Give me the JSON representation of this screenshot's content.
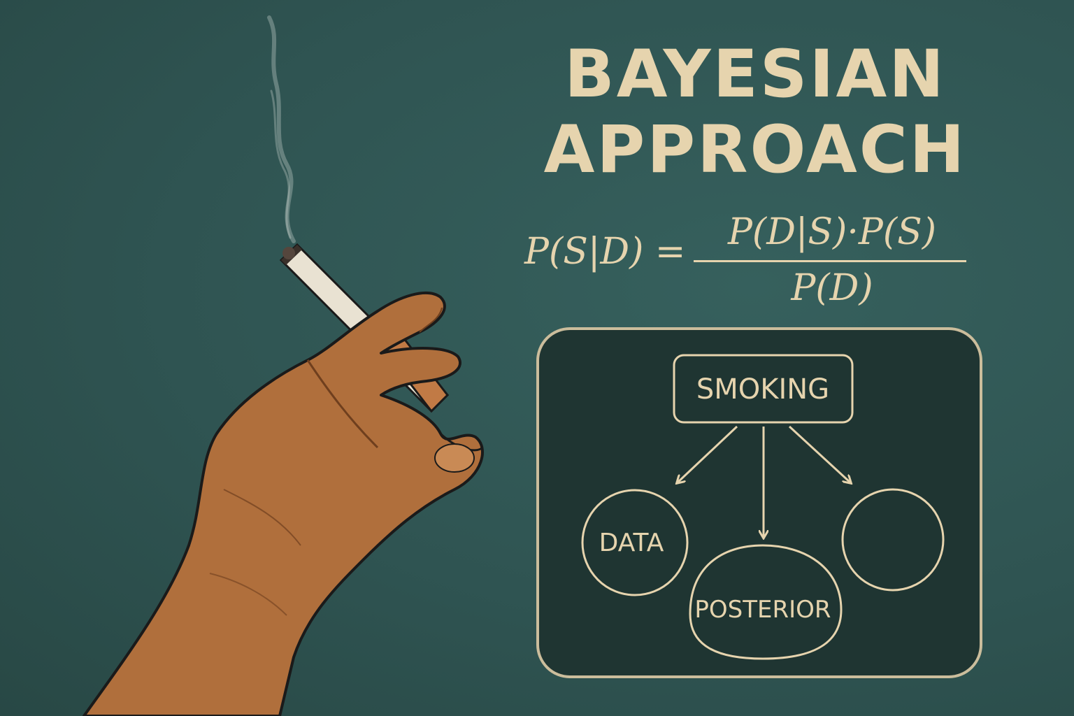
{
  "title": {
    "line1": "BAYESIAN",
    "line2": "APPROACH"
  },
  "formula": {
    "lhs": "P(S|D) =",
    "numerator": "P(D|S)·P(S)",
    "denominator": "P(D)"
  },
  "diagram": {
    "nodes": [
      {
        "id": "smoking",
        "label": "SMOKING"
      },
      {
        "id": "data",
        "label": "DATA"
      },
      {
        "id": "posterior",
        "label": "POSTERIOR"
      },
      {
        "id": "unlabeled",
        "label": ""
      }
    ]
  },
  "colors": {
    "background": "#2f5452",
    "panel": "#1f3532",
    "ink": "#e6d4ae",
    "skin": "#b06f3c",
    "cigarette": "#e9e2d2"
  }
}
